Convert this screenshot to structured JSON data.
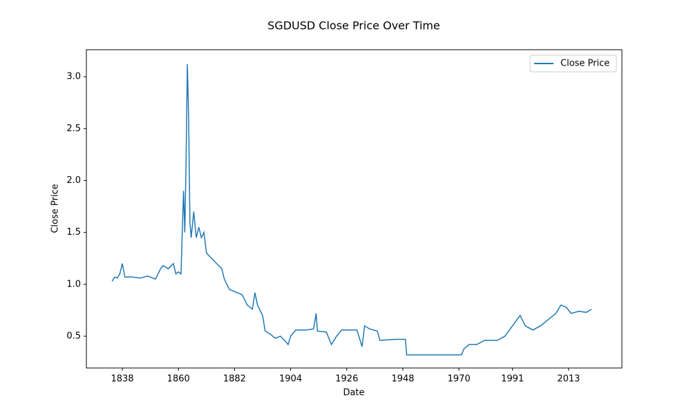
{
  "chart_data": {
    "type": "line",
    "title": "SGDUSD Close Price Over Time",
    "x_label": "Date",
    "y_label": "Close Price",
    "x": [
      1834,
      1835,
      1836,
      1837,
      1838,
      1839,
      1842,
      1845,
      1848,
      1851,
      1853,
      1854,
      1856,
      1858,
      1859,
      1860,
      1861,
      1862,
      1862.5,
      1863,
      1863.5,
      1864,
      1864.5,
      1865,
      1866,
      1867,
      1868,
      1869,
      1870,
      1871,
      1873,
      1875,
      1877,
      1878,
      1880,
      1882,
      1885,
      1887,
      1889,
      1890,
      1891,
      1893,
      1894,
      1896,
      1898,
      1900,
      1902,
      1903,
      1904,
      1906,
      1910,
      1913,
      1914,
      1914.5,
      1918,
      1920,
      1922,
      1924,
      1930,
      1932,
      1933,
      1935,
      1938,
      1939,
      1945,
      1949,
      1949.5,
      1960,
      1971,
      1972,
      1974,
      1977,
      1980,
      1985,
      1988,
      1991,
      1994,
      1996,
      1999,
      2002,
      2005,
      2008,
      2010,
      2012,
      2014,
      2017,
      2020,
      2022
    ],
    "series": [
      {
        "name": "Close Price",
        "color": "#1f77b4",
        "values": [
          1.03,
          1.07,
          1.06,
          1.1,
          1.2,
          1.07,
          1.07,
          1.06,
          1.08,
          1.05,
          1.15,
          1.18,
          1.15,
          1.2,
          1.1,
          1.12,
          1.1,
          1.9,
          1.5,
          2.2,
          3.12,
          2.6,
          1.6,
          1.45,
          1.7,
          1.45,
          1.55,
          1.45,
          1.5,
          1.3,
          1.25,
          1.2,
          1.15,
          1.05,
          0.95,
          0.93,
          0.9,
          0.8,
          0.76,
          0.92,
          0.8,
          0.7,
          0.55,
          0.52,
          0.48,
          0.5,
          0.45,
          0.42,
          0.5,
          0.56,
          0.56,
          0.57,
          0.72,
          0.55,
          0.54,
          0.42,
          0.5,
          0.56,
          0.56,
          0.4,
          0.6,
          0.57,
          0.55,
          0.46,
          0.47,
          0.47,
          0.32,
          0.32,
          0.32,
          0.38,
          0.42,
          0.42,
          0.46,
          0.46,
          0.5,
          0.6,
          0.7,
          0.6,
          0.56,
          0.6,
          0.66,
          0.72,
          0.8,
          0.78,
          0.72,
          0.74,
          0.73,
          0.76
        ]
      }
    ],
    "xlim": [
      1823.9,
      2033.9
    ],
    "xticks": [
      1838,
      1860,
      1882,
      1904,
      1926,
      1948,
      1970,
      1991,
      2013
    ],
    "ylim": [
      0.194,
      3.26
    ],
    "yticks": [
      0.5,
      {
        "value": 1.0,
        "label": "1.0"
      },
      1.5,
      {
        "value": 2.0,
        "label": "2.0"
      },
      2.5,
      {
        "value": 3.0,
        "label": "3.0"
      }
    ],
    "legend": "upper right"
  }
}
